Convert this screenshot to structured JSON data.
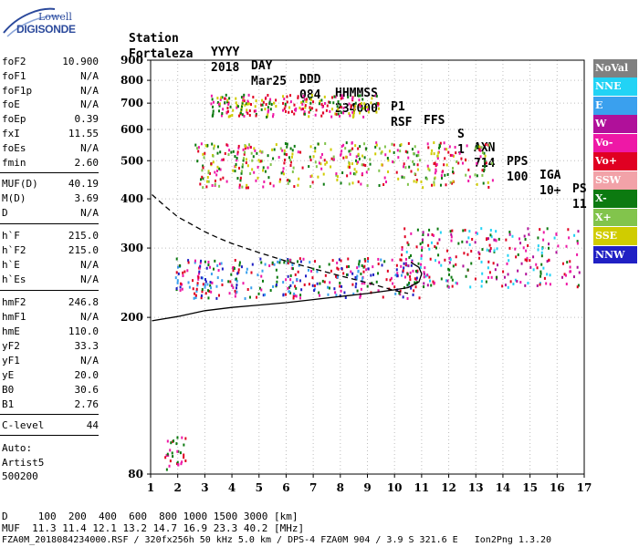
{
  "logo": {
    "line1": "Lowell",
    "line2": "DIGISONDE"
  },
  "header": {
    "labels": [
      "Station",
      "YYYY",
      "DAY",
      "DDD",
      "HHMMSS",
      "P1",
      "FFS",
      "S",
      "AXN",
      "PPS",
      "IGA",
      "PS"
    ],
    "values": [
      "Fortaleza",
      "2018",
      "Mar25",
      "084",
      "234000",
      "RSF",
      "",
      "1",
      "714",
      "100",
      "10+",
      "11"
    ]
  },
  "parameters": [
    {
      "name": "foF2",
      "value": "10.900"
    },
    {
      "name": "foF1",
      "value": "N/A"
    },
    {
      "name": "foF1p",
      "value": "N/A"
    },
    {
      "name": "foE",
      "value": "N/A"
    },
    {
      "name": "foEp",
      "value": "0.39"
    },
    {
      "name": "fxI",
      "value": "11.55"
    },
    {
      "name": "foEs",
      "value": "N/A"
    },
    {
      "name": "fmin",
      "value": "2.60"
    },
    {
      "name": "MUF(D)",
      "value": "40.19"
    },
    {
      "name": "M(D)",
      "value": "3.69"
    },
    {
      "name": "D",
      "value": "N/A"
    },
    {
      "name": "h`F",
      "value": "215.0"
    },
    {
      "name": "h`F2",
      "value": "215.0"
    },
    {
      "name": "h`E",
      "value": "N/A"
    },
    {
      "name": "h`Es",
      "value": "N/A"
    },
    {
      "name": "hmF2",
      "value": "246.8"
    },
    {
      "name": "hmF1",
      "value": "N/A"
    },
    {
      "name": "hmE",
      "value": "110.0"
    },
    {
      "name": "yF2",
      "value": "33.3"
    },
    {
      "name": "yF1",
      "value": "N/A"
    },
    {
      "name": "yE",
      "value": "20.0"
    },
    {
      "name": "B0",
      "value": "30.6"
    },
    {
      "name": "B1",
      "value": "2.76"
    },
    {
      "name": "C-level",
      "value": "44"
    }
  ],
  "auto": {
    "line1": "Auto:",
    "line2": "Artist5",
    "line3": "500200"
  },
  "legend": [
    {
      "label": "NoVal",
      "color": "#808080"
    },
    {
      "label": "NNE",
      "color": "#22d3f5"
    },
    {
      "label": "E",
      "color": "#3aa0ee"
    },
    {
      "label": "W",
      "color": "#b0109a"
    },
    {
      "label": "Vo-",
      "color": "#ee18a6"
    },
    {
      "label": "Vo+",
      "color": "#e00022"
    },
    {
      "label": "SSW",
      "color": "#f2a2a8"
    },
    {
      "label": "X-",
      "color": "#0c7a10"
    },
    {
      "label": "X+",
      "color": "#82c44c"
    },
    {
      "label": "SSE",
      "color": "#d0cc00"
    },
    {
      "label": "NNW",
      "color": "#2020c4"
    }
  ],
  "footer": {
    "line1": "D     100  200  400  600  800 1000 1500 3000 [km]",
    "line2": "MUF  11.3 11.4 12.1 13.2 14.7 16.9 23.3 40.2 [MHz]",
    "line3": "FZA0M_2018084234000.RSF / 320fx256h 50 kHz 5.0 km / DPS-4 FZA0M 904 / 3.9 S 321.6 E   Ion2Png 1.3.20"
  },
  "chart_data": {
    "type": "scatter",
    "title": "",
    "xlabel": "",
    "ylabel": "",
    "xlim": [
      1,
      17
    ],
    "ylim": [
      80,
      900
    ],
    "y_scale": "log",
    "x_ticks": [
      "1",
      "2",
      "3",
      "4",
      "5",
      "6",
      "7",
      "8",
      "9",
      "10",
      "11",
      "12",
      "13",
      "14",
      "15",
      "16",
      "17"
    ],
    "y_ticks": [
      "80",
      "200",
      "300",
      "400",
      "500",
      "600",
      "700",
      "800",
      "900"
    ],
    "y_tick_values": [
      80,
      200,
      300,
      400,
      500,
      600,
      700,
      800,
      900
    ],
    "grid": true,
    "traces": [
      {
        "name": "profile",
        "style": "dashed",
        "x": [
          1.05,
          1.5,
          2,
          2.5,
          3,
          3.5,
          4,
          5,
          6,
          7,
          8,
          9,
          10,
          10.5
        ],
        "y": [
          410,
          385,
          360,
          345,
          330,
          318,
          308,
          292,
          278,
          266,
          255,
          245,
          234,
          230
        ]
      },
      {
        "name": "fit",
        "style": "solid",
        "x": [
          1.05,
          2,
          3,
          4,
          5,
          6,
          7,
          8,
          9,
          10,
          10.5,
          10.9,
          11.0,
          10.9,
          10.6
        ],
        "y": [
          196,
          201,
          208,
          212,
          215,
          218,
          222,
          226,
          230,
          235,
          238,
          246,
          258,
          268,
          276
        ]
      }
    ],
    "echo_regions": [
      {
        "trace": "F-layer o",
        "x": [
          1.9,
          10.9
        ],
        "y": [
          225,
          285
        ],
        "colors": [
          "#e00022",
          "#ee18a6",
          "#3aa0ee",
          "#0c7a10",
          "#2020c4"
        ]
      },
      {
        "trace": "F-layer spread",
        "x": [
          10.2,
          16.8
        ],
        "y": [
          240,
          340
        ],
        "colors": [
          "#22d3f5",
          "#e00022",
          "#b0109a",
          "#ee18a6",
          "#0c7a10"
        ]
      },
      {
        "trace": "2F multi-hop",
        "x": [
          2.6,
          13.6
        ],
        "y": [
          430,
          560
        ],
        "colors": [
          "#e00022",
          "#0c7a10",
          "#ee18a6",
          "#d0cc00",
          "#82c44c"
        ]
      },
      {
        "trace": "3F multi-hop",
        "x": [
          3.2,
          9.4
        ],
        "y": [
          650,
          740
        ],
        "colors": [
          "#e00022",
          "#ee18a6",
          "#0c7a10",
          "#d0cc00"
        ]
      },
      {
        "trace": "low echoes",
        "x": [
          1.5,
          2.3
        ],
        "y": [
          82,
          100
        ],
        "colors": [
          "#e00022",
          "#ee18a6",
          "#0c7a10"
        ]
      }
    ]
  }
}
